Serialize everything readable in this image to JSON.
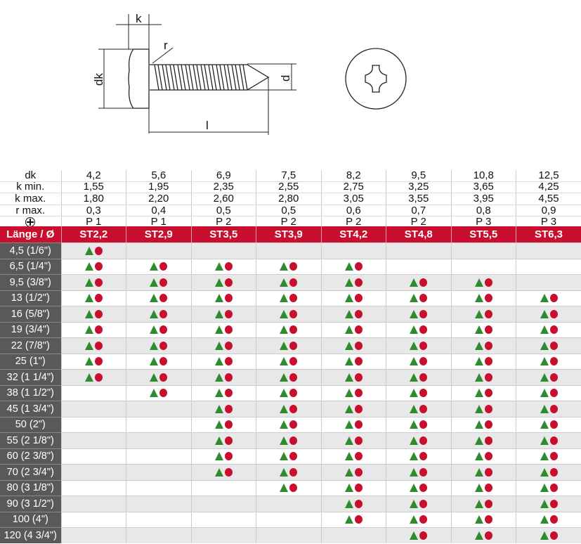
{
  "drawing": {
    "labels": {
      "k": "k",
      "r": "r",
      "dk": "dk",
      "d": "d",
      "l": "l"
    }
  },
  "spec": {
    "rows": [
      {
        "label": "dk",
        "values": [
          "4,2",
          "5,6",
          "6,9",
          "7,5",
          "8,2",
          "9,5",
          "10,8",
          "12,5"
        ]
      },
      {
        "label": "k min.",
        "values": [
          "1,55",
          "1,95",
          "2,35",
          "2,55",
          "2,75",
          "3,25",
          "3,65",
          "4,25"
        ]
      },
      {
        "label": "k max.",
        "values": [
          "1,80",
          "2,20",
          "2,60",
          "2,80",
          "3,05",
          "3,55",
          "3,95",
          "4,55"
        ]
      },
      {
        "label": "r max.",
        "values": [
          "0,3",
          "0,4",
          "0,5",
          "0,5",
          "0,6",
          "0,7",
          "0,8",
          "0,9"
        ]
      },
      {
        "label": "",
        "icon": "phillips-drive-icon",
        "values": [
          "P 1",
          "P 1",
          "P 2",
          "P 2",
          "P 2",
          "P 2",
          "P 3",
          "P 3"
        ]
      }
    ]
  },
  "table": {
    "header": "Länge / Ø",
    "columns": [
      "ST2,2",
      "ST2,9",
      "ST3,5",
      "ST3,9",
      "ST4,2",
      "ST4,8",
      "ST5,5",
      "ST6,3"
    ],
    "legend_colors": {
      "triangle": "#2e8b2e",
      "dot": "#c8102e",
      "header": "#c8102e"
    },
    "rows": [
      {
        "length": "4,5 (1/6\")",
        "avail": [
          1,
          0,
          0,
          0,
          0,
          0,
          0,
          0
        ]
      },
      {
        "length": "6,5 (1/4\")",
        "avail": [
          1,
          1,
          1,
          1,
          1,
          0,
          0,
          0
        ]
      },
      {
        "length": "9,5 (3/8\")",
        "avail": [
          1,
          1,
          1,
          1,
          1,
          1,
          1,
          0
        ]
      },
      {
        "length": "13 (1/2\")",
        "avail": [
          1,
          1,
          1,
          1,
          1,
          1,
          1,
          1
        ]
      },
      {
        "length": "16 (5/8\")",
        "avail": [
          1,
          1,
          1,
          1,
          1,
          1,
          1,
          1
        ]
      },
      {
        "length": "19 (3/4\")",
        "avail": [
          1,
          1,
          1,
          1,
          1,
          1,
          1,
          1
        ]
      },
      {
        "length": "22 (7/8\")",
        "avail": [
          1,
          1,
          1,
          1,
          1,
          1,
          1,
          1
        ]
      },
      {
        "length": "25 (1\")",
        "avail": [
          1,
          1,
          1,
          1,
          1,
          1,
          1,
          1
        ]
      },
      {
        "length": "32 (1 1/4\")",
        "avail": [
          1,
          1,
          1,
          1,
          1,
          1,
          1,
          1
        ]
      },
      {
        "length": "38 (1 1/2\")",
        "avail": [
          0,
          1,
          1,
          1,
          1,
          1,
          1,
          1
        ]
      },
      {
        "length": "45 (1 3/4\")",
        "avail": [
          0,
          0,
          1,
          1,
          1,
          1,
          1,
          1
        ]
      },
      {
        "length": "50 (2\")",
        "avail": [
          0,
          0,
          1,
          1,
          1,
          1,
          1,
          1
        ]
      },
      {
        "length": "55 (2 1/8\")",
        "avail": [
          0,
          0,
          1,
          1,
          1,
          1,
          1,
          1
        ]
      },
      {
        "length": "60 (2 3/8\")",
        "avail": [
          0,
          0,
          1,
          1,
          1,
          1,
          1,
          1
        ]
      },
      {
        "length": "70 (2 3/4\")",
        "avail": [
          0,
          0,
          1,
          1,
          1,
          1,
          1,
          1
        ]
      },
      {
        "length": "80 (3 1/8\")",
        "avail": [
          0,
          0,
          0,
          1,
          1,
          1,
          1,
          1
        ]
      },
      {
        "length": "90 (3 1/2\")",
        "avail": [
          0,
          0,
          0,
          0,
          1,
          1,
          1,
          1
        ]
      },
      {
        "length": "100 (4\")",
        "avail": [
          0,
          0,
          0,
          0,
          1,
          1,
          1,
          1
        ]
      },
      {
        "length": "120 (4 3/4\")",
        "avail": [
          0,
          0,
          0,
          0,
          0,
          1,
          1,
          1
        ]
      }
    ]
  }
}
